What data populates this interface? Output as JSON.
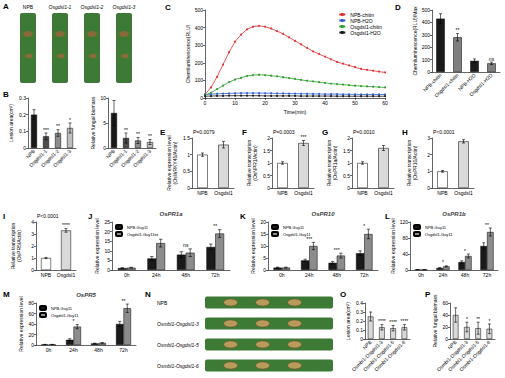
{
  "images": [
    {
      "panel": "A",
      "captions": [
        "NPB",
        "Osgdsl1-1",
        "Osgdsl1-2",
        "Osgdsl1-3"
      ]
    },
    {
      "panel": "N",
      "captions": [
        "NPB",
        "Osmbl1-Osgdsl1-3",
        "Osmbl1-Osgdsl1-5",
        "Osmbl1-Osgdsl1-6"
      ]
    }
  ],
  "chart_data": [
    {
      "panel": "B",
      "type": "bar",
      "ylabel": "Lesion area(cm²)",
      "categories": [
        "NPB",
        "Osgdsl1-1",
        "Osgdsl1-2",
        "Osgdsl1-3"
      ],
      "values": [
        0.2,
        0.07,
        0.09,
        0.12
      ],
      "errors": [
        0.03,
        0.02,
        0.02,
        0.03
      ],
      "colors": [
        "#1a1a1a",
        "#4d4d4d",
        "#8c8c8c",
        "#bfbfbf"
      ],
      "ylim": [
        0,
        0.3
      ],
      "yticks": [
        0,
        0.1,
        0.2,
        0.3
      ],
      "grid": false,
      "annotations": [
        {
          "category": "Osgdsl1-1",
          "text": "***"
        },
        {
          "category": "Osgdsl1-2",
          "text": "**"
        },
        {
          "category": "Osgdsl1-3",
          "text": "*"
        }
      ]
    },
    {
      "type": "bar",
      "ylabel": "Relative fungal biomass",
      "categories": [
        "NPB",
        "Osgdsl1-1",
        "Osgdsl1-2",
        "Osgdsl1-3"
      ],
      "values": [
        7,
        2,
        1.5,
        1.2
      ],
      "errors": [
        2.5,
        1,
        0.6,
        0.5
      ],
      "colors": [
        "#1a1a1a",
        "#4d4d4d",
        "#8c8c8c",
        "#bfbfbf"
      ],
      "ylim": [
        0,
        10
      ],
      "yticks": [
        0,
        5,
        10
      ],
      "grid": false,
      "annotations": [
        {
          "category": "Osgdsl1-1",
          "text": "**"
        },
        {
          "category": "Osgdsl1-2",
          "text": "**"
        },
        {
          "category": "Osgdsl1-3",
          "text": "**"
        }
      ]
    },
    {
      "panel": "C",
      "type": "line",
      "xlabel": "Time(min)",
      "ylabel": "Chemiluminescence(RLU)",
      "x": [
        0,
        2,
        4,
        6,
        8,
        10,
        12,
        14,
        16,
        18,
        20,
        22,
        24,
        26,
        28,
        30,
        32,
        34,
        36,
        38,
        40,
        42,
        44,
        46,
        48,
        50,
        52,
        54,
        56,
        58,
        60
      ],
      "series": [
        {
          "name": "NPB-chitin",
          "color": "#e03030",
          "values": [
            20,
            60,
            120,
            190,
            260,
            320,
            360,
            390,
            405,
            410,
            405,
            395,
            380,
            365,
            345,
            325,
            305,
            285,
            265,
            250,
            235,
            220,
            205,
            195,
            185,
            175,
            165,
            160,
            155,
            150,
            145
          ]
        },
        {
          "name": "NPB-H2O",
          "color": "#2f5fd0",
          "values": [
            20,
            22,
            24,
            25,
            26,
            27,
            28,
            28,
            28,
            28,
            27,
            27,
            26,
            26,
            25,
            25,
            24,
            24,
            23,
            23,
            22,
            22,
            22,
            21,
            21,
            21,
            20,
            20,
            20,
            20,
            20
          ]
        },
        {
          "name": "Osgdsl1-chitin",
          "color": "#2ca02c",
          "values": [
            15,
            30,
            50,
            70,
            90,
            105,
            115,
            125,
            130,
            132,
            130,
            127,
            123,
            118,
            113,
            108,
            103,
            98,
            94,
            90,
            86,
            82,
            79,
            76,
            73,
            70,
            68,
            66,
            64,
            62,
            60
          ]
        },
        {
          "name": "Osgdsl1-H2O",
          "color": "#1a1a1a",
          "values": [
            10,
            11,
            12,
            12,
            13,
            13,
            13,
            13,
            13,
            13,
            12,
            12,
            12,
            12,
            12,
            12,
            11,
            11,
            11,
            11,
            11,
            11,
            10,
            10,
            10,
            10,
            10,
            10,
            10,
            10,
            10
          ]
        }
      ],
      "xlim": [
        0,
        60
      ],
      "xticks": [
        0,
        10,
        20,
        30,
        40,
        50,
        60
      ],
      "ylim": [
        0,
        500
      ],
      "yticks": [
        0,
        100,
        200,
        300,
        400,
        500
      ],
      "legend": "upper right",
      "marker": "circle",
      "grid": false
    },
    {
      "panel": "D",
      "type": "bar",
      "ylabel": "Chemiluminescence(RLU)/Max",
      "categories": [
        "NPB-chitin",
        "Osgdsl1-chitin",
        "NPB-H2O",
        "Osgdsl1-H2O"
      ],
      "values": [
        430,
        280,
        90,
        70
      ],
      "errors": [
        40,
        30,
        15,
        10
      ],
      "colors": [
        "#1a1a1a",
        "#7f7f7f",
        "#1a1a1a",
        "#7f7f7f"
      ],
      "ylim": [
        0,
        500
      ],
      "yticks": [
        0,
        100,
        200,
        300,
        400,
        500
      ],
      "grid": false,
      "annotations": [
        {
          "category": "Osgdsl1-chitin",
          "text": "**"
        },
        {
          "category": "Osgdsl1-H2O",
          "text": "ns"
        }
      ]
    },
    {
      "panel": "E",
      "type": "bar",
      "ylabel": "Relative expression level\n(OsWRKY45/Actin)",
      "categories": [
        "NPB",
        "Osgdsl1"
      ],
      "values": [
        1,
        1.3
      ],
      "errors": [
        0.05,
        0.1
      ],
      "colors": [
        "#ffffff",
        "#d9d9d9"
      ],
      "ylim": [
        0,
        1.5
      ],
      "yticks": [
        0,
        0.5,
        1,
        1.5
      ],
      "grid": false,
      "annotations": [
        {
          "text": "P=0.0079"
        }
      ]
    },
    {
      "panel": "F",
      "type": "bar",
      "ylabel": "Relative transcription\n(OsNPR1/Actin)",
      "categories": [
        "NPB",
        "Osgdsl1"
      ],
      "values": [
        1,
        1.8
      ],
      "errors": [
        0.05,
        0.1
      ],
      "colors": [
        "#ffffff",
        "#d9d9d9"
      ],
      "ylim": [
        0,
        2
      ],
      "yticks": [
        0,
        0.5,
        1,
        1.5,
        2
      ],
      "grid": false,
      "annotations": [
        {
          "text": "P=0.0003"
        },
        {
          "category": "Osgdsl1",
          "text": "***"
        }
      ]
    },
    {
      "panel": "G",
      "type": "bar",
      "ylabel": "Relative transcription\n(OsPR1a/Actin)",
      "categories": [
        "NPB",
        "Osgdsl1"
      ],
      "values": [
        1,
        1.6
      ],
      "errors": [
        0.05,
        0.1
      ],
      "colors": [
        "#ffffff",
        "#d9d9d9"
      ],
      "ylim": [
        0,
        2
      ],
      "yticks": [
        0,
        0.5,
        1,
        1.5,
        2
      ],
      "grid": false,
      "annotations": [
        {
          "text": "P=0.0010"
        }
      ]
    },
    {
      "panel": "H",
      "type": "bar",
      "ylabel": "Relative transcription\n(OsPR10/Actin)",
      "categories": [
        "NPB",
        "Osgdsl1"
      ],
      "values": [
        1,
        2.8
      ],
      "errors": [
        0.05,
        0.1
      ],
      "colors": [
        "#ffffff",
        "#d9d9d9"
      ],
      "ylim": [
        0,
        3
      ],
      "yticks": [
        0,
        1,
        2,
        3
      ],
      "grid": false,
      "annotations": [
        {
          "text": "P<0.0001"
        }
      ]
    },
    {
      "panel": "I",
      "type": "bar",
      "ylabel": "Relative transcription\n(OsPR5/Actin)",
      "categories": [
        "NPB",
        "Osgdsl1"
      ],
      "values": [
        1,
        3.3
      ],
      "errors": [
        0.05,
        0.15
      ],
      "colors": [
        "#ffffff",
        "#d9d9d9"
      ],
      "ylim": [
        0,
        4
      ],
      "yticks": [
        0,
        1,
        2,
        3,
        4
      ],
      "grid": false,
      "annotations": [
        {
          "text": "P<0.0001"
        },
        {
          "category": "Osgdsl1",
          "text": "****"
        }
      ]
    },
    {
      "panel": "J",
      "type": "bar",
      "title": "OsPR1a",
      "ylabel": "Relative expression level",
      "categories": [
        "0h",
        "24h",
        "48h",
        "72h"
      ],
      "series": [
        {
          "name": "NPB-Guy11",
          "color": "#1a1a1a",
          "values": [
            1,
            6,
            8,
            12
          ],
          "errors": [
            0.2,
            1,
            1.5,
            1.5
          ]
        },
        {
          "name": "Osgdsl1-Guy11",
          "color": "#8c8c8c",
          "values": [
            1.2,
            14,
            9,
            19
          ],
          "errors": [
            0.2,
            2,
            2,
            2
          ]
        }
      ],
      "ylim": [
        0,
        25
      ],
      "yticks": [
        0,
        5,
        10,
        15,
        20,
        25
      ],
      "legend": "upper left",
      "grid": false,
      "annotations": [
        {
          "category": "24h",
          "text": "**"
        },
        {
          "category": "48h",
          "text": "ns"
        },
        {
          "category": "72h",
          "text": "**"
        }
      ]
    },
    {
      "panel": "K",
      "type": "bar",
      "title": "OsPR10",
      "ylabel": "Relative expression level",
      "categories": [
        "0h",
        "24h",
        "48h",
        "72h"
      ],
      "series": [
        {
          "name": "NPB-Guy11",
          "color": "#1a1a1a",
          "values": [
            1,
            4,
            3,
            7
          ],
          "errors": [
            0.2,
            0.5,
            0.5,
            1
          ]
        },
        {
          "name": "Osgdsl1-Guy11",
          "color": "#8c8c8c",
          "values": [
            1,
            10,
            6,
            15
          ],
          "errors": [
            0.2,
            1.5,
            1,
            2
          ]
        }
      ],
      "ylim": [
        0,
        20
      ],
      "yticks": [
        0,
        5,
        10,
        15,
        20
      ],
      "legend": "upper left",
      "grid": false,
      "annotations": [
        {
          "category": "24h",
          "text": "***"
        },
        {
          "category": "48h",
          "text": "***"
        },
        {
          "category": "72h",
          "text": "*"
        }
      ]
    },
    {
      "panel": "L",
      "type": "bar",
      "title": "OsPR1b",
      "ylabel": "Relative expression level",
      "categories": [
        "0h",
        "24h",
        "48h",
        "72h"
      ],
      "series": [
        {
          "name": "NPB-Guy11",
          "color": "#1a1a1a",
          "values": [
            1,
            5,
            20,
            60
          ],
          "errors": [
            0.2,
            1,
            3,
            8
          ]
        },
        {
          "name": "Osgdsl1-Guy11",
          "color": "#8c8c8c",
          "values": [
            1,
            9,
            35,
            95
          ],
          "errors": [
            0.2,
            1.5,
            5,
            10
          ]
        }
      ],
      "ylim": [
        0,
        120
      ],
      "yticks": [
        0,
        40,
        80,
        120
      ],
      "legend": "upper left",
      "grid": false,
      "annotations": [
        {
          "category": "24h",
          "text": "*"
        },
        {
          "category": "48h",
          "text": "*"
        },
        {
          "category": "72h",
          "text": "**"
        }
      ]
    },
    {
      "panel": "M",
      "type": "bar",
      "title": "OsPR5",
      "ylabel": "Relative expression level",
      "categories": [
        "0h",
        "24h",
        "48h",
        "72h"
      ],
      "series": [
        {
          "name": "NPB-Guy11",
          "color": "#1a1a1a",
          "values": [
            1,
            10,
            3,
            40
          ],
          "errors": [
            0.2,
            2,
            0.5,
            5
          ]
        },
        {
          "name": "Osgdsl1-Guy11",
          "color": "#8c8c8c",
          "values": [
            1,
            35,
            4,
            70
          ],
          "errors": [
            0.2,
            4,
            0.6,
            8
          ]
        }
      ],
      "ylim": [
        0,
        80
      ],
      "yticks": [
        0,
        20,
        40,
        60,
        80
      ],
      "legend": "upper left",
      "grid": false,
      "annotations": [
        {
          "category": "24h",
          "text": "*"
        },
        {
          "category": "72h",
          "text": "**"
        }
      ]
    },
    {
      "panel": "O",
      "type": "bar",
      "ylabel": "Lesion area(cm²)",
      "categories": [
        "NPB",
        "Osmbl1-Osgdsl1-3",
        "Osmbl1-Osgdsl1-5",
        "Osmbl1-Osgdsl1-6"
      ],
      "values": [
        0.25,
        0.13,
        0.12,
        0.13
      ],
      "errors": [
        0.05,
        0.03,
        0.03,
        0.03
      ],
      "colors": [
        "#d9d9d9",
        "#d9d9d9",
        "#d9d9d9",
        "#d9d9d9"
      ],
      "ylim": [
        0,
        0.4
      ],
      "yticks": [
        0,
        0.1,
        0.2,
        0.3,
        0.4
      ],
      "grid": false,
      "annotations": [
        {
          "category": "Osmbl1-Osgdsl1-3",
          "text": "****"
        },
        {
          "category": "Osmbl1-Osgdsl1-5",
          "text": "****"
        },
        {
          "category": "Osmbl1-Osgdsl1-6",
          "text": "****"
        }
      ]
    },
    {
      "panel": "P",
      "type": "bar",
      "ylabel": "Relative fungal biomass",
      "categories": [
        "NPB",
        "Osmbl1-Osgdsl1-3",
        "Osmbl1-Osgdsl1-5",
        "Osmbl1-Osgdsl1-6"
      ],
      "values": [
        40,
        20,
        18,
        17
      ],
      "errors": [
        12,
        8,
        10,
        8
      ],
      "colors": [
        "#d9d9d9",
        "#d9d9d9",
        "#d9d9d9",
        "#d9d9d9"
      ],
      "ylim": [
        0,
        60
      ],
      "yticks": [
        0,
        20,
        40,
        60
      ],
      "grid": false,
      "annotations": [
        {
          "category": "Osmbl1-Osgdsl1-3",
          "text": "*"
        },
        {
          "category": "Osmbl1-Osgdsl1-5",
          "text": "**"
        },
        {
          "category": "Osmbl1-Osgdsl1-6",
          "text": "*"
        }
      ]
    }
  ]
}
